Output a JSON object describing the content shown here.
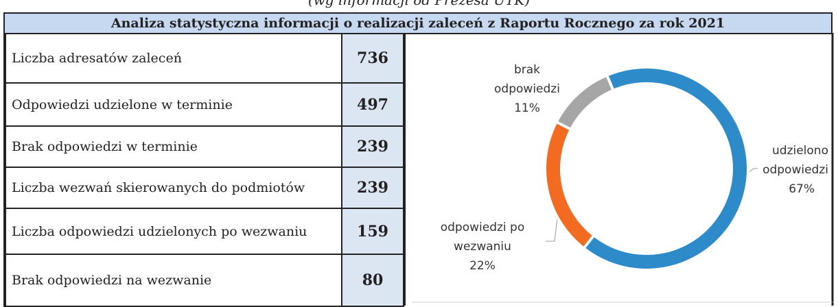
{
  "header": {
    "subtitle": "(wg informacji od Prezesa UTK)",
    "title": "Analiza statystyczna informacji o realizacji zaleceń z Raportu Rocznego za rok 2021"
  },
  "table": {
    "rows": [
      [
        "Liczba adresatów zaleceń",
        "736"
      ],
      [
        "Odpowiedzi udzielone w terminie",
        "497"
      ],
      [
        "Brak odpowiedzi w terminie",
        "239"
      ],
      [
        "Liczba wezwań skierowanych do podmiotów",
        "239"
      ],
      [
        "Liczba odpowiedzi udzielonych po wezwaniu",
        "159"
      ],
      [
        "Brak odpowiedzi na wezwanie",
        "80"
      ]
    ]
  },
  "chart_data": {
    "type": "donut",
    "categories": [
      [
        "udzielono",
        "odpowiedzi"
      ],
      [
        "odpowiedzi po",
        "wezwaniu"
      ],
      [
        "brak",
        "odpowiedzi"
      ]
    ],
    "values": [
      67,
      22,
      11
    ],
    "value_labels": [
      "67%",
      "22%",
      "11%"
    ],
    "colors": [
      "#2e8bc9",
      "#f26b21",
      "#a6a6a6"
    ]
  }
}
